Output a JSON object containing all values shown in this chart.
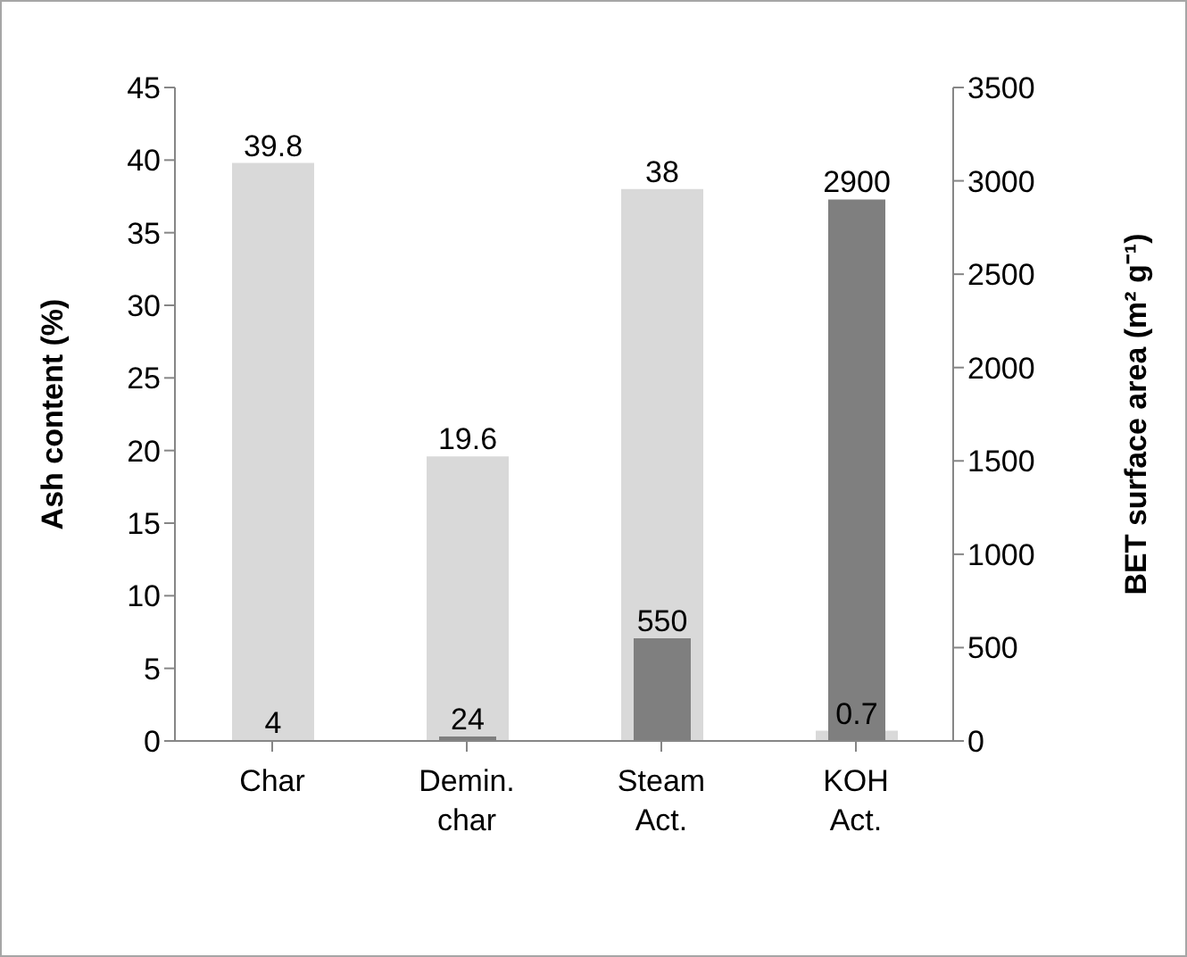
{
  "chart_data": {
    "type": "bar",
    "categories": [
      "Char",
      "Demin. char",
      "Steam Act.",
      "KOH Act."
    ],
    "ylabel": "Ash content (%)",
    "y2label": "BET surface area (m² g⁻¹)",
    "series": [
      {
        "color": "#d9d9d9",
        "values": [
          39.8,
          19.6,
          38,
          0.7
        ]
      },
      {
        "color": "#7f7f7f",
        "values": [
          4,
          24,
          550,
          2900
        ],
        "axis": "y2"
      }
    ],
    "ylim": [
      0,
      45
    ],
    "yticks": [
      0,
      5,
      10,
      15,
      20,
      25,
      30,
      35,
      40,
      45
    ],
    "y2lim": [
      0,
      3500
    ],
    "y2ticks": [
      0,
      500,
      1000,
      1500,
      2000,
      2500,
      3000,
      3500
    ],
    "data_labels": true,
    "grid": false,
    "legend": false
  }
}
